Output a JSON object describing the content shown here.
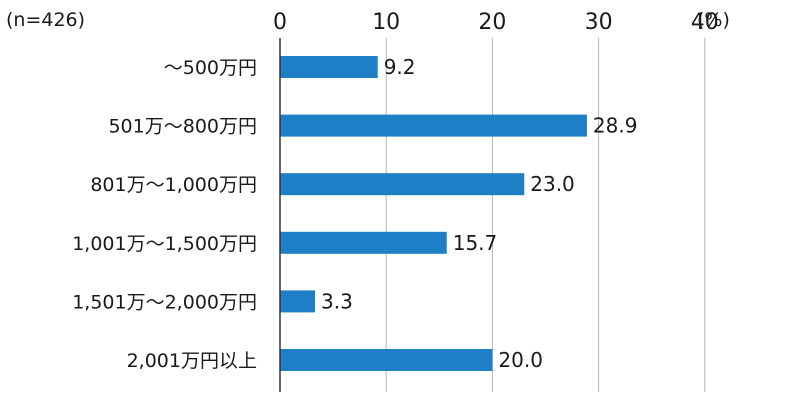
{
  "chart_data": {
    "type": "bar",
    "orientation": "horizontal",
    "sample_note": "(n=426)",
    "unit_label": "(%)",
    "categories": [
      "～500万円",
      "501万～800万円",
      "801万～1,000万円",
      "1,001万～1,500万円",
      "1,501万～2,000万円",
      "2,001万円以上"
    ],
    "values": [
      9.2,
      28.9,
      23.0,
      15.7,
      3.3,
      20.0
    ],
    "value_labels": [
      "9.2",
      "28.9",
      "23.0",
      "15.7",
      "3.3",
      "20.0"
    ],
    "x_ticks": [
      0,
      10,
      20,
      30,
      40
    ],
    "x_tick_labels": [
      "0",
      "10",
      "20",
      "30",
      "40"
    ],
    "xlim": [
      0,
      40
    ],
    "axis_position": "top",
    "grid": true,
    "bar_color": "#1f7fc6"
  }
}
